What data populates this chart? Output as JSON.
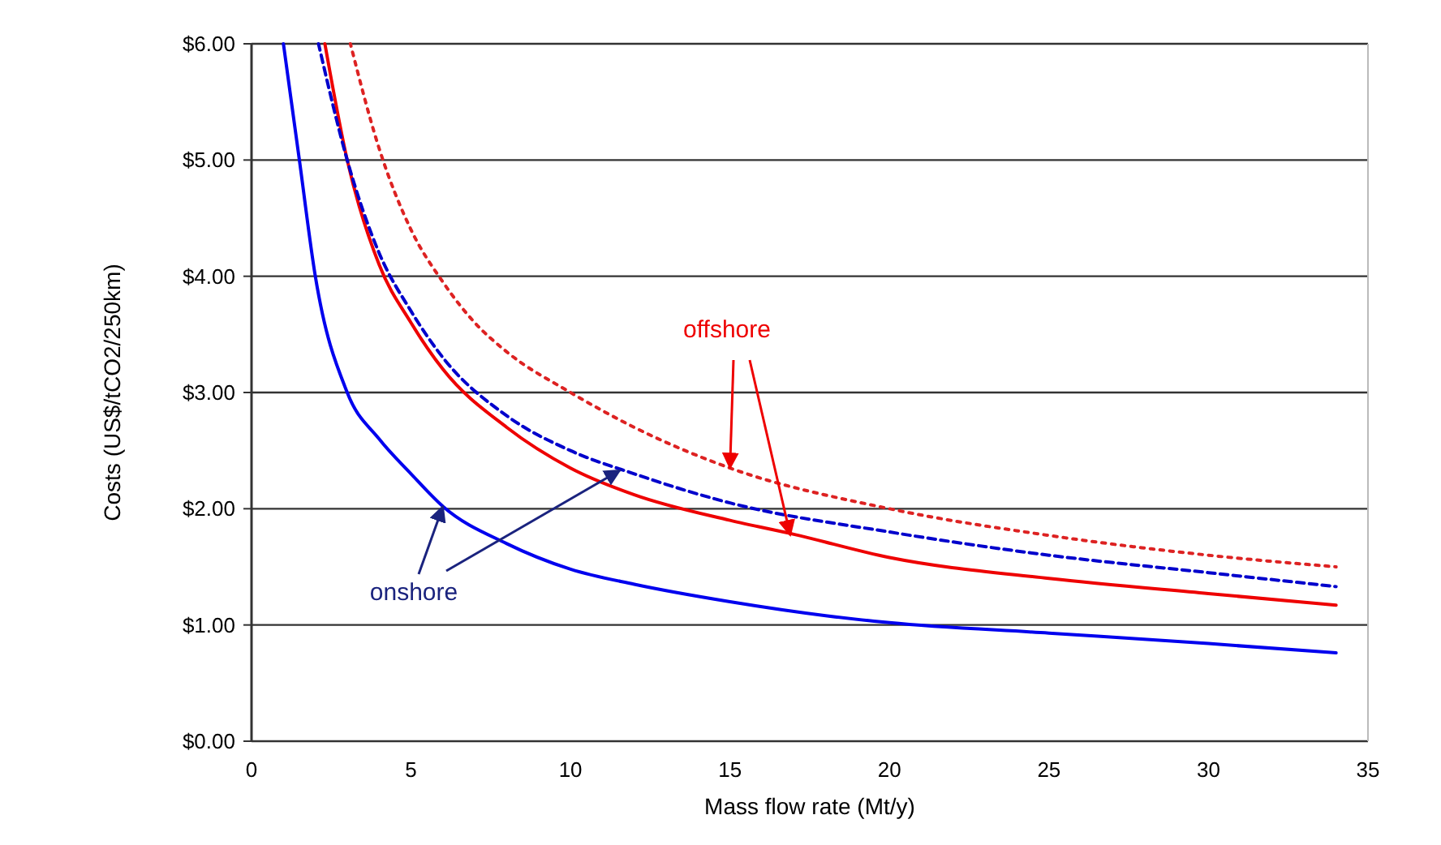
{
  "chart_data": {
    "type": "line",
    "xlabel": "Mass flow rate (Mt/y)",
    "ylabel": "Costs (US$/tCO2/250km)",
    "xlim": [
      0,
      35
    ],
    "xticks": [
      0,
      5,
      10,
      15,
      20,
      25,
      30,
      35
    ],
    "ylim": [
      0,
      6
    ],
    "yticks": [
      {
        "value": 0,
        "label": "$0.00"
      },
      {
        "value": 1,
        "label": "$1.00"
      },
      {
        "value": 2,
        "label": "$2.00"
      },
      {
        "value": 3,
        "label": "$3.00"
      },
      {
        "value": 4,
        "label": "$4.00"
      },
      {
        "value": 5,
        "label": "$5.00"
      },
      {
        "value": 6,
        "label": "$6.00"
      }
    ],
    "grid": "y",
    "marker": "none",
    "series": [
      {
        "color": "#0000ee",
        "line_style": "solid",
        "x": [
          1,
          1.5,
          2,
          3,
          4,
          5,
          6,
          8,
          10,
          12,
          15,
          18,
          20,
          25,
          30,
          34
        ],
        "values": [
          6,
          5.0,
          4.0,
          3.0,
          2.6,
          2.3,
          2.02,
          1.7,
          1.48,
          1.35,
          1.2,
          1.08,
          1.02,
          0.93,
          0.84,
          0.76
        ]
      },
      {
        "color": "#ee0000",
        "line_style": "solid",
        "x": [
          2.3,
          3,
          4,
          5,
          6,
          8,
          10,
          12,
          15,
          17,
          20,
          25,
          30,
          34
        ],
        "values": [
          6,
          5.0,
          4.1,
          3.6,
          3.2,
          2.7,
          2.35,
          2.12,
          1.9,
          1.78,
          1.58,
          1.4,
          1.27,
          1.17
        ]
      },
      {
        "color": "#0000cc",
        "line_style": "dashed",
        "x": [
          2.1,
          3,
          4,
          5,
          6,
          8,
          10,
          12,
          15,
          20,
          25,
          30,
          34
        ],
        "values": [
          6,
          5.0,
          4.2,
          3.7,
          3.3,
          2.8,
          2.5,
          2.3,
          2.05,
          1.8,
          1.6,
          1.45,
          1.33
        ]
      },
      {
        "color": "#dd2222",
        "line_style": "dotted",
        "x": [
          3.1,
          4,
          5,
          6,
          7,
          8,
          10,
          12,
          15,
          20,
          25,
          30,
          34
        ],
        "values": [
          6,
          5.1,
          4.4,
          3.95,
          3.6,
          3.35,
          3.0,
          2.7,
          2.35,
          2.0,
          1.77,
          1.6,
          1.5
        ]
      }
    ],
    "annotations": [
      {
        "text": "offshore",
        "x": 15,
        "y": 2.35
      },
      {
        "text": "onshore",
        "x": 6,
        "y": 2.02
      }
    ]
  }
}
